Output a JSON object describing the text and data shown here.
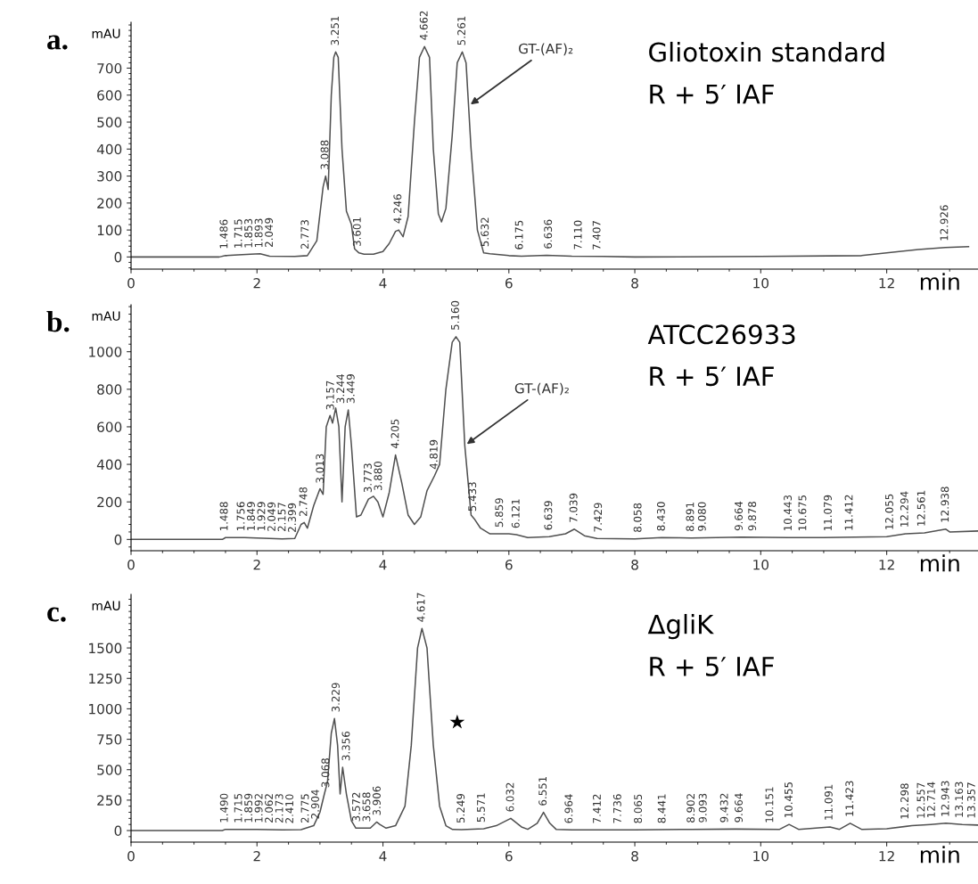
{
  "chart_data": [
    {
      "type": "line",
      "title": "a.",
      "subtitle": "Gliotoxin standard",
      "xlabel": "min",
      "ylabel": "mAU",
      "xlim": [
        0,
        13.45
      ],
      "xticks": [
        0,
        2,
        4,
        6,
        8,
        10,
        12
      ],
      "ylim": [
        -45,
        870
      ],
      "yticks": [
        0,
        100,
        200,
        300,
        400,
        500,
        600,
        700
      ],
      "grid": false,
      "legend": false,
      "annotations": [
        "R + 5′ IAF",
        {
          "text": "GT-(AF)₂",
          "x": 5.36,
          "y": 560
        },
        {
          "text": "1.486",
          "x": 1.486,
          "y": 6
        },
        {
          "text": "1.715",
          "x": 1.715,
          "y": 8
        },
        {
          "text": "1.853",
          "x": 1.853,
          "y": 9
        },
        {
          "text": "1.893",
          "x": 1.893,
          "y": 10
        },
        {
          "text": "2.049",
          "x": 2.049,
          "y": 12
        },
        {
          "text": "2.773",
          "x": 2.773,
          "y": 5
        },
        {
          "text": "3.088",
          "x": 3.088,
          "y": 300
        },
        {
          "text": "3.251",
          "x": 3.251,
          "y": 760
        },
        {
          "text": "3.601",
          "x": 3.601,
          "y": 15
        },
        {
          "text": "4.246",
          "x": 4.246,
          "y": 100
        },
        {
          "text": "4.662",
          "x": 4.662,
          "y": 780
        },
        {
          "text": "5.261",
          "x": 5.261,
          "y": 760
        },
        {
          "text": "5.632",
          "x": 5.632,
          "y": 14
        },
        {
          "text": "6.175",
          "x": 6.175,
          "y": 3
        },
        {
          "text": "6.636",
          "x": 6.636,
          "y": 6
        },
        {
          "text": "7.110",
          "x": 7.11,
          "y": 3
        },
        {
          "text": "7.407",
          "x": 7.407,
          "y": 2
        },
        {
          "text": "12.926",
          "x": 12.926,
          "y": 35
        }
      ],
      "series": [
        {
          "color": "#505050",
          "x": [
            0,
            1.4,
            1.5,
            1.7,
            1.9,
            2.05,
            2.2,
            2.6,
            2.8,
            2.95,
            3.05,
            3.09,
            3.13,
            3.18,
            3.22,
            3.25,
            3.29,
            3.35,
            3.42,
            3.5,
            3.55,
            3.62,
            3.7,
            3.85,
            4.0,
            4.1,
            4.2,
            4.25,
            4.32,
            4.4,
            4.5,
            4.58,
            4.66,
            4.74,
            4.8,
            4.88,
            4.93,
            5.0,
            5.1,
            5.18,
            5.26,
            5.32,
            5.4,
            5.5,
            5.6,
            5.7,
            6.0,
            6.2,
            6.6,
            7.0,
            7.5,
            8,
            10,
            11.6,
            12.0,
            12.5,
            12.93,
            13.3
          ],
          "values": [
            0,
            0,
            5,
            8,
            10,
            12,
            3,
            2,
            5,
            60,
            260,
            300,
            250,
            600,
            740,
            760,
            740,
            400,
            170,
            120,
            30,
            15,
            10,
            10,
            20,
            50,
            95,
            100,
            75,
            150,
            500,
            740,
            780,
            740,
            400,
            160,
            130,
            180,
            450,
            720,
            760,
            720,
            400,
            100,
            15,
            12,
            5,
            3,
            6,
            3,
            2,
            0,
            2,
            5,
            15,
            28,
            35,
            38
          ]
        }
      ]
    },
    {
      "type": "line",
      "title": "b.",
      "subtitle": "ATCC26933",
      "xlabel": "min",
      "ylabel": "mAU",
      "xlim": [
        0,
        13.45
      ],
      "xticks": [
        0,
        2,
        4,
        6,
        8,
        10,
        12
      ],
      "ylim": [
        -60,
        1250
      ],
      "yticks": [
        0,
        200,
        400,
        600,
        800,
        1000
      ],
      "grid": false,
      "legend": false,
      "annotations": [
        "R + 5′ IAF",
        {
          "text": "GT-(AF)₂",
          "x": 5.3,
          "y": 500
        },
        {
          "text": "1.488",
          "x": 1.488,
          "y": 10
        },
        {
          "text": "1.756",
          "x": 1.756,
          "y": 10
        },
        {
          "text": "1.849",
          "x": 1.849,
          "y": 10
        },
        {
          "text": "1.929",
          "x": 1.929,
          "y": 10
        },
        {
          "text": "2.049",
          "x": 2.049,
          "y": 8
        },
        {
          "text": "2.157",
          "x": 2.157,
          "y": 7
        },
        {
          "text": "2.399",
          "x": 2.399,
          "y": 3
        },
        {
          "text": "2.748",
          "x": 2.748,
          "y": 88
        },
        {
          "text": "3.013",
          "x": 3.013,
          "y": 265
        },
        {
          "text": "3.157",
          "x": 3.157,
          "y": 655
        },
        {
          "text": "3.244",
          "x": 3.244,
          "y": 690
        },
        {
          "text": "3.449",
          "x": 3.449,
          "y": 690
        },
        {
          "text": "3.773",
          "x": 3.773,
          "y": 215
        },
        {
          "text": "3.880",
          "x": 3.88,
          "y": 225
        },
        {
          "text": "4.205",
          "x": 4.205,
          "y": 450
        },
        {
          "text": "4.819",
          "x": 4.819,
          "y": 340
        },
        {
          "text": "5.160",
          "x": 5.16,
          "y": 1080
        },
        {
          "text": "5.433",
          "x": 5.433,
          "y": 115
        },
        {
          "text": "5.859",
          "x": 5.859,
          "y": 30
        },
        {
          "text": "6.121",
          "x": 6.121,
          "y": 25
        },
        {
          "text": "6.639",
          "x": 6.639,
          "y": 15
        },
        {
          "text": "7.039",
          "x": 7.039,
          "y": 55
        },
        {
          "text": "7.429",
          "x": 7.429,
          "y": 5
        },
        {
          "text": "8.058",
          "x": 8.058,
          "y": 3
        },
        {
          "text": "8.430",
          "x": 8.43,
          "y": 10
        },
        {
          "text": "8.891",
          "x": 8.891,
          "y": 8
        },
        {
          "text": "9.080",
          "x": 9.08,
          "y": 9
        },
        {
          "text": "9.664",
          "x": 9.664,
          "y": 12
        },
        {
          "text": "9.878",
          "x": 9.878,
          "y": 11
        },
        {
          "text": "10.443",
          "x": 10.443,
          "y": 10
        },
        {
          "text": "10.675",
          "x": 10.675,
          "y": 10
        },
        {
          "text": "11.079",
          "x": 11.079,
          "y": 10
        },
        {
          "text": "11.412",
          "x": 11.412,
          "y": 12
        },
        {
          "text": "12.055",
          "x": 12.055,
          "y": 16
        },
        {
          "text": "12.294",
          "x": 12.294,
          "y": 30
        },
        {
          "text": "12.561",
          "x": 12.561,
          "y": 35
        },
        {
          "text": "12.938",
          "x": 12.938,
          "y": 55
        }
      ],
      "series": [
        {
          "color": "#505050",
          "x": [
            0,
            1.45,
            1.5,
            1.8,
            2.2,
            2.4,
            2.6,
            2.7,
            2.75,
            2.8,
            2.9,
            3.0,
            3.05,
            3.1,
            3.16,
            3.2,
            3.25,
            3.3,
            3.35,
            3.4,
            3.45,
            3.5,
            3.58,
            3.65,
            3.77,
            3.85,
            3.92,
            4.0,
            4.1,
            4.2,
            4.3,
            4.4,
            4.5,
            4.6,
            4.7,
            4.82,
            4.9,
            5.0,
            5.1,
            5.16,
            5.22,
            5.3,
            5.4,
            5.45,
            5.55,
            5.7,
            5.86,
            6.0,
            6.12,
            6.3,
            6.64,
            6.9,
            7.04,
            7.2,
            7.4,
            8.0,
            8.43,
            8.9,
            9.7,
            10.44,
            11,
            12.0,
            12.3,
            12.6,
            12.94,
            13.0,
            13.45
          ],
          "values": [
            0,
            0,
            10,
            10,
            5,
            3,
            5,
            80,
            90,
            60,
            180,
            270,
            240,
            600,
            660,
            620,
            700,
            600,
            200,
            600,
            690,
            500,
            120,
            130,
            215,
            230,
            200,
            120,
            250,
            450,
            300,
            130,
            80,
            120,
            260,
            340,
            400,
            800,
            1050,
            1080,
            1050,
            500,
            130,
            110,
            60,
            30,
            30,
            30,
            25,
            10,
            15,
            30,
            55,
            20,
            5,
            3,
            10,
            8,
            12,
            10,
            10,
            15,
            30,
            35,
            55,
            40,
            45
          ]
        }
      ]
    },
    {
      "type": "line",
      "title": "c.",
      "subtitle": "ΔgliK",
      "xlabel": "min",
      "ylabel": "mAU",
      "xlim": [
        0,
        13.45
      ],
      "xticks": [
        0,
        2,
        4,
        6,
        8,
        10,
        12
      ],
      "ylim": [
        -95,
        1940
      ],
      "yticks": [
        0,
        250,
        500,
        750,
        1000,
        1250,
        1500
      ],
      "grid": false,
      "legend": false,
      "annotations": [
        "R + 5′ IAF",
        {
          "text": "1.490",
          "x": 1.49,
          "y": 10
        },
        {
          "text": "1.715",
          "x": 1.715,
          "y": 10
        },
        {
          "text": "1.859",
          "x": 1.859,
          "y": 10
        },
        {
          "text": "1.992",
          "x": 1.992,
          "y": 10
        },
        {
          "text": "2.062",
          "x": 2.062,
          "y": 9
        },
        {
          "text": "2.173",
          "x": 2.173,
          "y": 8
        },
        {
          "text": "2.410",
          "x": 2.41,
          "y": 5
        },
        {
          "text": "2.775",
          "x": 2.775,
          "y": 8
        },
        {
          "text": "2.904",
          "x": 2.904,
          "y": 42
        },
        {
          "text": "3.068",
          "x": 3.068,
          "y": 300
        },
        {
          "text": "3.229",
          "x": 3.229,
          "y": 920
        },
        {
          "text": "3.356",
          "x": 3.356,
          "y": 520
        },
        {
          "text": "3.572",
          "x": 3.572,
          "y": 20
        },
        {
          "text": "3.658",
          "x": 3.658,
          "y": 20
        },
        {
          "text": "3.906",
          "x": 3.906,
          "y": 70
        },
        {
          "text": "4.617",
          "x": 4.617,
          "y": 1660
        },
        {
          "text": "5.249",
          "x": 5.249,
          "y": 8
        },
        {
          "text": "5.571",
          "x": 5.571,
          "y": 14
        },
        {
          "text": "6.032",
          "x": 6.032,
          "y": 100
        },
        {
          "text": "6.551",
          "x": 6.551,
          "y": 150
        },
        {
          "text": "6.964",
          "x": 6.964,
          "y": 5
        },
        {
          "text": "7.412",
          "x": 7.412,
          "y": 5
        },
        {
          "text": "7.736",
          "x": 7.736,
          "y": 5
        },
        {
          "text": "8.065",
          "x": 8.065,
          "y": 5
        },
        {
          "text": "8.441",
          "x": 8.441,
          "y": 6
        },
        {
          "text": "8.902",
          "x": 8.902,
          "y": 10
        },
        {
          "text": "9.093",
          "x": 9.093,
          "y": 11
        },
        {
          "text": "9.432",
          "x": 9.432,
          "y": 12
        },
        {
          "text": "9.664",
          "x": 9.664,
          "y": 12
        },
        {
          "text": "10.151",
          "x": 10.151,
          "y": 10
        },
        {
          "text": "10.455",
          "x": 10.455,
          "y": 50
        },
        {
          "text": "11.091",
          "x": 11.091,
          "y": 30
        },
        {
          "text": "11.423",
          "x": 11.423,
          "y": 60
        },
        {
          "text": "12.298",
          "x": 12.298,
          "y": 39
        },
        {
          "text": "12.557",
          "x": 12.557,
          "y": 45
        },
        {
          "text": "12.714",
          "x": 12.714,
          "y": 50
        },
        {
          "text": "12.943",
          "x": 12.943,
          "y": 60
        },
        {
          "text": "13.163",
          "x": 13.163,
          "y": 52
        },
        {
          "text": "13.357",
          "x": 13.357,
          "y": 47
        }
      ],
      "series": [
        {
          "color": "#505050",
          "x": [
            0,
            1.45,
            1.5,
            2.0,
            2.4,
            2.7,
            2.9,
            3.0,
            3.07,
            3.12,
            3.18,
            3.23,
            3.28,
            3.32,
            3.36,
            3.42,
            3.5,
            3.57,
            3.7,
            3.8,
            3.9,
            3.95,
            4.05,
            4.2,
            4.35,
            4.45,
            4.55,
            4.62,
            4.7,
            4.8,
            4.9,
            5.0,
            5.1,
            5.25,
            5.6,
            5.8,
            6.03,
            6.2,
            6.3,
            6.45,
            6.55,
            6.65,
            6.75,
            7.0,
            8,
            8.9,
            9.6,
            10.3,
            10.45,
            10.6,
            11.1,
            11.25,
            11.42,
            11.6,
            12.0,
            12.4,
            12.7,
            12.94,
            13.2,
            13.45
          ],
          "values": [
            0,
            0,
            10,
            10,
            5,
            8,
            40,
            150,
            300,
            400,
            800,
            920,
            700,
            300,
            520,
            300,
            80,
            20,
            20,
            20,
            70,
            50,
            20,
            40,
            200,
            700,
            1500,
            1660,
            1500,
            700,
            200,
            40,
            10,
            8,
            15,
            40,
            100,
            30,
            10,
            60,
            150,
            60,
            10,
            5,
            5,
            10,
            12,
            10,
            50,
            10,
            30,
            10,
            60,
            10,
            15,
            40,
            50,
            60,
            50,
            45
          ]
        },
        {
          "type": "scatter",
          "marker": "star",
          "color": "#000000",
          "x": [
            5.18
          ],
          "values": [
            890
          ]
        }
      ]
    }
  ]
}
